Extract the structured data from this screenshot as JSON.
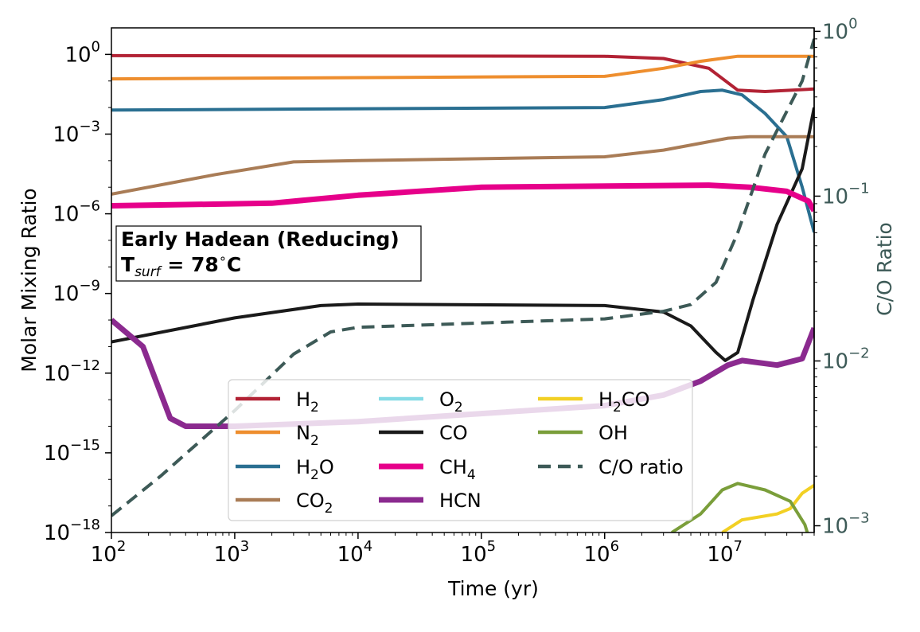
{
  "chart_data": {
    "type": "line",
    "xlabel": "Time (yr)",
    "ylabel": "Molar Mixing Ratio",
    "y2label": "C/O Ratio",
    "x_scale": "log",
    "y_scale": "log",
    "y2_scale": "log",
    "xlim": [
      100,
      50000000
    ],
    "ylim": [
      1e-18,
      10
    ],
    "y2lim": [
      0.00091,
      1.05
    ],
    "x_ticks": [
      {
        "value": 100,
        "base": "10",
        "exp": "2"
      },
      {
        "value": 1000,
        "base": "10",
        "exp": "3"
      },
      {
        "value": 10000,
        "base": "10",
        "exp": "4"
      },
      {
        "value": 100000,
        "base": "10",
        "exp": "5"
      },
      {
        "value": 1000000,
        "base": "10",
        "exp": "6"
      },
      {
        "value": 10000000,
        "base": "10",
        "exp": "7"
      }
    ],
    "y_ticks": [
      {
        "value": 1,
        "base": "10",
        "exp": "0"
      },
      {
        "value": 0.001,
        "base": "10",
        "exp": "−3"
      },
      {
        "value": 1e-06,
        "base": "10",
        "exp": "−6"
      },
      {
        "value": 1e-09,
        "base": "10",
        "exp": "−9"
      },
      {
        "value": 1e-12,
        "base": "10",
        "exp": "−12"
      },
      {
        "value": 1e-15,
        "base": "10",
        "exp": "−15"
      },
      {
        "value": 1e-18,
        "base": "10",
        "exp": "−18"
      }
    ],
    "y2_ticks": [
      {
        "value": 1,
        "base": "10",
        "exp": "0"
      },
      {
        "value": 0.1,
        "base": "10",
        "exp": "−1"
      },
      {
        "value": 0.01,
        "base": "10",
        "exp": "−2"
      },
      {
        "value": 0.001,
        "base": "10",
        "exp": "−3"
      }
    ],
    "annotation": {
      "line1": "Early Hadean (Reducing)",
      "line2_prefix": "T",
      "line2_sub": "surf",
      "line2_suffix": " = 78",
      "line2_degree": "∘",
      "line2_unit": "C"
    },
    "legend": {
      "placement": "lower-center",
      "columns": 3
    },
    "series": [
      {
        "key": "H2",
        "base": "H",
        "sub": "2",
        "tail": "",
        "color": "#b22234",
        "width": 4,
        "axis": "left",
        "dashed": false,
        "points": [
          [
            100,
            0.9
          ],
          [
            1000000,
            0.85
          ],
          [
            3000000,
            0.7
          ],
          [
            7000000,
            0.3
          ],
          [
            12000000,
            0.045
          ],
          [
            20000000,
            0.04
          ],
          [
            50000000,
            0.05
          ]
        ]
      },
      {
        "key": "N2",
        "base": "N",
        "sub": "2",
        "tail": "",
        "color": "#ee8e2e",
        "width": 4,
        "axis": "left",
        "dashed": false,
        "points": [
          [
            100,
            0.12
          ],
          [
            1000000,
            0.15
          ],
          [
            3000000,
            0.3
          ],
          [
            6000000,
            0.55
          ],
          [
            12000000,
            0.85
          ],
          [
            50000000,
            0.85
          ]
        ]
      },
      {
        "key": "H2O",
        "base": "H",
        "sub": "2",
        "tail": "O",
        "color": "#2a6f91",
        "width": 4,
        "axis": "left",
        "dashed": false,
        "points": [
          [
            100,
            0.008
          ],
          [
            1000000,
            0.01
          ],
          [
            3000000,
            0.02
          ],
          [
            6000000,
            0.04
          ],
          [
            9000000,
            0.045
          ],
          [
            13000000,
            0.03
          ],
          [
            20000000,
            0.006
          ],
          [
            30000000,
            0.0008
          ],
          [
            40000000,
            1e-05
          ],
          [
            50000000,
            2e-07
          ]
        ]
      },
      {
        "key": "CO2",
        "base": "CO",
        "sub": "2",
        "tail": "",
        "color": "#a97c56",
        "width": 4,
        "axis": "left",
        "dashed": false,
        "points": [
          [
            100,
            5.5e-06
          ],
          [
            700,
            3e-05
          ],
          [
            3000,
            9e-05
          ],
          [
            10000,
            0.0001
          ],
          [
            1000000,
            0.00014
          ],
          [
            3000000,
            0.00025
          ],
          [
            10000000,
            0.0007
          ],
          [
            15000000,
            0.0008
          ],
          [
            50000000,
            0.0008
          ]
        ]
      },
      {
        "key": "O2",
        "base": "O",
        "sub": "2",
        "tail": "",
        "color": "#86dbe6",
        "width": 4,
        "axis": "left",
        "dashed": false,
        "points": []
      },
      {
        "key": "CO",
        "base": "CO",
        "sub": "",
        "tail": "",
        "color": "#1a1a1a",
        "width": 4,
        "axis": "left",
        "dashed": false,
        "points": [
          [
            100,
            1.5e-11
          ],
          [
            1000,
            1.2e-10
          ],
          [
            5000,
            3.5e-10
          ],
          [
            10000,
            4e-10
          ],
          [
            1000000,
            3.5e-10
          ],
          [
            3000000,
            2e-10
          ],
          [
            5000000,
            6e-11
          ],
          [
            8000000,
            6e-12
          ],
          [
            9500000,
            3e-12
          ],
          [
            12000000,
            6e-12
          ],
          [
            16000000,
            6e-10
          ],
          [
            25000000,
            4e-07
          ],
          [
            40000000,
            5e-05
          ],
          [
            50000000,
            0.01
          ]
        ]
      },
      {
        "key": "CH4",
        "base": "CH",
        "sub": "4",
        "tail": "",
        "color": "#e6008a",
        "width": 7,
        "axis": "left",
        "dashed": false,
        "points": [
          [
            100,
            2e-06
          ],
          [
            2000,
            2.5e-06
          ],
          [
            10000,
            5e-06
          ],
          [
            100000,
            1e-05
          ],
          [
            7000000,
            1.2e-05
          ],
          [
            15000000,
            1e-05
          ],
          [
            30000000,
            7e-06
          ],
          [
            45000000,
            3e-06
          ],
          [
            50000000,
            1.3e-06
          ]
        ]
      },
      {
        "key": "HCN",
        "base": "HCN",
        "sub": "",
        "tail": "",
        "color": "#8b2a8f",
        "width": 7,
        "axis": "left",
        "dashed": false,
        "points": [
          [
            100,
            1e-10
          ],
          [
            180,
            1e-11
          ],
          [
            300,
            2e-14
          ],
          [
            400,
            1e-14
          ],
          [
            1000,
            1e-14
          ],
          [
            10000,
            1.5e-14
          ],
          [
            100000,
            3e-14
          ],
          [
            1000000,
            6e-14
          ],
          [
            3000000,
            1.5e-13
          ],
          [
            6000000,
            5e-13
          ],
          [
            10000000,
            2e-12
          ],
          [
            13000000,
            3e-12
          ],
          [
            25000000,
            2e-12
          ],
          [
            40000000,
            3.5e-12
          ],
          [
            50000000,
            5e-11
          ]
        ]
      },
      {
        "key": "H2CO",
        "base": "H",
        "sub": "2",
        "tail": "CO",
        "color": "#f2d024",
        "width": 4,
        "axis": "left",
        "dashed": false,
        "points": [
          [
            9000000,
            1e-18
          ],
          [
            13000000,
            3e-18
          ],
          [
            25000000,
            5e-18
          ],
          [
            32000000,
            8e-18
          ],
          [
            40000000,
            3e-17
          ],
          [
            50000000,
            6e-17
          ]
        ]
      },
      {
        "key": "OH",
        "base": "OH",
        "sub": "",
        "tail": "",
        "color": "#7a9e3a",
        "width": 4,
        "axis": "left",
        "dashed": false,
        "points": [
          [
            3500000,
            1e-18
          ],
          [
            6000000,
            5e-18
          ],
          [
            9000000,
            4e-17
          ],
          [
            12000000,
            7e-17
          ],
          [
            20000000,
            4e-17
          ],
          [
            32000000,
            1.5e-17
          ],
          [
            42000000,
            2e-18
          ],
          [
            44000000,
            1e-18
          ]
        ]
      },
      {
        "key": "CO_ratio",
        "base": "C/O ratio",
        "sub": "",
        "tail": "",
        "color": "#3d5a57",
        "width": 4,
        "axis": "right",
        "dashed": true,
        "points": [
          [
            100,
            0.00115
          ],
          [
            250,
            0.002
          ],
          [
            1000,
            0.005
          ],
          [
            3000,
            0.011
          ],
          [
            6000,
            0.015
          ],
          [
            10000,
            0.016
          ],
          [
            100000,
            0.017
          ],
          [
            1000000,
            0.018
          ],
          [
            3000000,
            0.02
          ],
          [
            5000000,
            0.022
          ],
          [
            8000000,
            0.03
          ],
          [
            12000000,
            0.06
          ],
          [
            20000000,
            0.18
          ],
          [
            40000000,
            0.5
          ],
          [
            50000000,
            0.9
          ]
        ]
      }
    ]
  }
}
